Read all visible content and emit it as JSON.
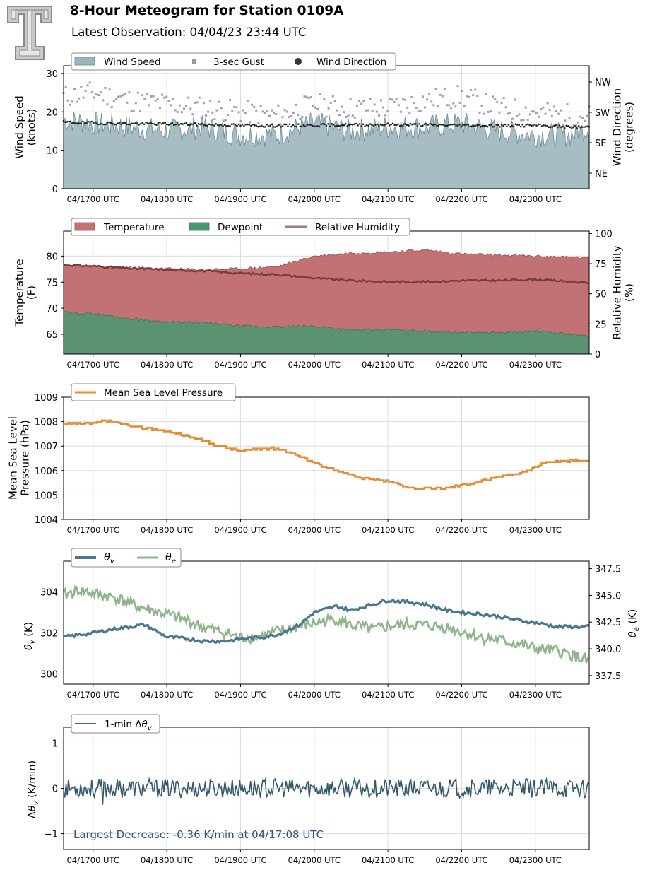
{
  "header": {
    "title": "8-Hour Meteogram for Station 0109A",
    "subtitle": "Latest Observation: 04/04/23 23:44 UTC"
  },
  "colors": {
    "wind_speed": "#9db6bd",
    "gust": "#9a93ad",
    "wind_direction": "#222222",
    "temperature": "#c27274",
    "dewpoint": "#4c9670",
    "relative_humidity": "#7a3a3d",
    "pressure": "#e58b33",
    "theta_v": "#4a7690",
    "theta_e": "#8fb58c",
    "delta_theta_v": "#35596c",
    "annotation": "#2f5570"
  },
  "chart_data": [
    {
      "id": "wind",
      "type": "area",
      "ylabel": "Wind Speed\n(knots)",
      "y2label": "Wind Direction\n(degrees)",
      "ylim": [
        0,
        32
      ],
      "yticks": [
        0,
        10,
        20,
        30
      ],
      "y2ticks": [
        "NE",
        "SE",
        "SW",
        "NW"
      ],
      "xticks": [
        "04/1700 UTC",
        "04/1800 UTC",
        "04/1900 UTC",
        "04/2000 UTC",
        "04/2100 UTC",
        "04/2200 UTC",
        "04/2300 UTC"
      ],
      "legend": [
        "Wind Speed",
        "3-sec Gust",
        "Wind Direction"
      ],
      "grid": true,
      "series": [
        {
          "name": "Wind Speed",
          "x": [
            16.6,
            17.0,
            17.5,
            18.0,
            18.5,
            19.0,
            19.5,
            20.0,
            20.5,
            21.0,
            21.5,
            22.0,
            22.5,
            23.0,
            23.5,
            23.73
          ],
          "values": [
            18,
            17,
            16,
            15,
            16,
            14,
            14,
            17,
            15,
            16,
            16,
            17,
            15,
            14,
            14,
            16
          ]
        },
        {
          "name": "3-sec Gust",
          "x": [
            16.6,
            17.0,
            17.5,
            18.0,
            18.5,
            19.0,
            19.5,
            20.0,
            20.5,
            21.0,
            21.5,
            22.0,
            22.5,
            23.0,
            23.5,
            23.73
          ],
          "values": [
            24,
            25,
            23,
            22,
            21,
            20,
            19,
            22,
            21,
            21,
            23,
            24,
            21,
            20,
            19,
            19
          ]
        },
        {
          "name": "Wind Direction",
          "x": [
            16.6,
            17.0,
            17.5,
            18.0,
            18.5,
            19.0,
            19.5,
            20.0,
            20.5,
            21.0,
            21.5,
            22.0,
            22.5,
            23.0,
            23.5,
            23.73
          ],
          "values": [
            17.3,
            17.1,
            16.9,
            16.9,
            16.7,
            16.5,
            16.4,
            16.5,
            16.6,
            16.7,
            16.6,
            16.5,
            16.4,
            16.5,
            16.0,
            16.1
          ]
        }
      ]
    },
    {
      "id": "temperature",
      "type": "area",
      "ylabel": "Temperature\n(F)",
      "y2label": "Relative Humidity\n(%)",
      "ylim": [
        61.2,
        84.8
      ],
      "yticks": [
        65,
        70,
        75,
        80
      ],
      "y2lim": [
        0,
        102
      ],
      "y2ticks": [
        0,
        25,
        50,
        75,
        100
      ],
      "xticks": [
        "04/1700 UTC",
        "04/1800 UTC",
        "04/1900 UTC",
        "04/2000 UTC",
        "04/2100 UTC",
        "04/2200 UTC",
        "04/2300 UTC"
      ],
      "legend": [
        "Temperature",
        "Dewpoint",
        "Relative Humidity"
      ],
      "grid": true,
      "series": [
        {
          "name": "Temperature",
          "x": [
            16.6,
            17.0,
            17.5,
            18.0,
            18.5,
            19.0,
            19.5,
            20.0,
            20.5,
            21.0,
            21.5,
            22.0,
            22.5,
            23.0,
            23.5,
            23.73
          ],
          "values": [
            78.2,
            78.0,
            77.8,
            77.6,
            77.4,
            77.6,
            78.0,
            80.0,
            80.6,
            80.8,
            81.2,
            80.4,
            80.2,
            80.0,
            79.8,
            79.6
          ]
        },
        {
          "name": "Dewpoint",
          "x": [
            16.6,
            17.0,
            17.5,
            18.0,
            18.5,
            19.0,
            19.5,
            20.0,
            20.5,
            21.0,
            21.5,
            22.0,
            22.5,
            23.0,
            23.5,
            23.73
          ],
          "values": [
            69.2,
            69.0,
            68.0,
            67.4,
            67.2,
            66.6,
            66.4,
            66.6,
            65.8,
            65.9,
            65.6,
            65.4,
            65.3,
            65.6,
            65.0,
            64.6
          ]
        },
        {
          "name": "Relative Humidity",
          "x": [
            16.6,
            17.0,
            17.5,
            18.0,
            18.5,
            19.0,
            19.5,
            20.0,
            20.5,
            21.0,
            21.5,
            22.0,
            22.5,
            23.0,
            23.5,
            23.73
          ],
          "values": [
            74,
            73,
            71,
            70,
            69,
            67,
            66,
            63,
            61,
            60,
            60,
            61,
            61,
            62,
            60,
            59
          ]
        }
      ]
    },
    {
      "id": "pressure",
      "type": "line",
      "ylabel": "Mean Sea Level\nPressure (hPa)",
      "ylim": [
        1004,
        1009
      ],
      "yticks": [
        1004,
        1005,
        1006,
        1007,
        1008,
        1009
      ],
      "xticks": [
        "04/1700 UTC",
        "04/1800 UTC",
        "04/1900 UTC",
        "04/2000 UTC",
        "04/2100 UTC",
        "04/2200 UTC",
        "04/2300 UTC"
      ],
      "legend": [
        "Mean Sea Level Pressure"
      ],
      "grid": true,
      "series": [
        {
          "name": "Mean Sea Level Pressure",
          "x": [
            16.6,
            16.9,
            17.1,
            17.3,
            17.5,
            17.8,
            18.0,
            18.3,
            18.5,
            18.7,
            19.0,
            19.3,
            19.5,
            19.8,
            20.0,
            20.3,
            20.6,
            20.9,
            21.1,
            21.3,
            21.6,
            21.8,
            22.0,
            22.3,
            22.6,
            22.9,
            23.1,
            23.3,
            23.5,
            23.73
          ],
          "values": [
            1007.9,
            1007.9,
            1008.0,
            1008.0,
            1007.8,
            1007.7,
            1007.6,
            1007.4,
            1007.2,
            1007.0,
            1006.8,
            1006.9,
            1006.9,
            1006.6,
            1006.3,
            1006.0,
            1005.7,
            1005.6,
            1005.5,
            1005.3,
            1005.25,
            1005.3,
            1005.4,
            1005.6,
            1005.8,
            1006.0,
            1006.3,
            1006.4,
            1006.4,
            1006.4
          ]
        }
      ]
    },
    {
      "id": "theta",
      "type": "line",
      "ylabel": "θv (K)",
      "y2label": "θe (K)",
      "ylim": [
        299.5,
        305.5
      ],
      "yticks": [
        300,
        302,
        304
      ],
      "y2lim": [
        336.7,
        348.2
      ],
      "y2ticks": [
        337.5,
        340.0,
        342.5,
        345.0,
        347.5
      ],
      "xticks": [
        "04/1700 UTC",
        "04/1800 UTC",
        "04/1900 UTC",
        "04/2000 UTC",
        "04/2100 UTC",
        "04/2200 UTC",
        "04/2300 UTC"
      ],
      "legend": [
        "θv",
        "θe"
      ],
      "grid": true,
      "series": [
        {
          "name": "θv",
          "x": [
            16.6,
            16.8,
            17.0,
            17.3,
            17.5,
            17.7,
            18.0,
            18.3,
            18.5,
            18.8,
            19.0,
            19.3,
            19.5,
            19.8,
            20.0,
            20.3,
            20.5,
            20.8,
            21.0,
            21.3,
            21.5,
            21.8,
            22.0,
            22.3,
            22.5,
            22.8,
            23.0,
            23.3,
            23.5,
            23.73
          ],
          "values": [
            301.8,
            301.9,
            302.0,
            302.2,
            302.3,
            302.4,
            301.8,
            301.7,
            301.6,
            301.6,
            301.7,
            301.8,
            301.9,
            302.4,
            303.0,
            303.3,
            303.1,
            303.4,
            303.6,
            303.5,
            303.4,
            303.1,
            303.0,
            302.9,
            302.8,
            302.6,
            302.5,
            302.3,
            302.3,
            302.3
          ]
        },
        {
          "name": "θe",
          "x": [
            16.6,
            16.8,
            17.0,
            17.3,
            17.5,
            17.7,
            18.0,
            18.3,
            18.5,
            18.8,
            19.0,
            19.3,
            19.5,
            19.8,
            20.0,
            20.3,
            20.5,
            20.8,
            21.0,
            21.3,
            21.5,
            21.8,
            22.0,
            22.3,
            22.5,
            22.8,
            23.0,
            23.3,
            23.5,
            23.73
          ],
          "values": [
            345.0,
            345.5,
            345.2,
            344.8,
            344.2,
            343.8,
            343.2,
            342.6,
            342.0,
            341.5,
            341.0,
            341.2,
            341.6,
            342.1,
            342.4,
            342.8,
            342.2,
            341.8,
            342.1,
            342.3,
            342.2,
            342.0,
            341.6,
            341.0,
            340.8,
            340.4,
            340.0,
            339.8,
            339.4,
            338.8
          ]
        }
      ]
    },
    {
      "id": "dtheta",
      "type": "line",
      "ylabel": "Δθv (K/min)",
      "ylim": [
        -1.35,
        1.35
      ],
      "yticks": [
        -1,
        0,
        1
      ],
      "xticks": [
        "04/1700 UTC",
        "04/1800 UTC",
        "04/1900 UTC",
        "04/2000 UTC",
        "04/2100 UTC",
        "04/2200 UTC",
        "04/2300 UTC"
      ],
      "legend": [
        "1-min Δθv"
      ],
      "grid": true,
      "annotation": "Largest Decrease: -0.36 K/min at 04/17:08 UTC",
      "series": [
        {
          "name": "1-min Δθv",
          "x": [
            16.6,
            17.13,
            18.0,
            19.0,
            20.0,
            21.0,
            22.0,
            23.0,
            23.73
          ],
          "values": [
            0.0,
            -0.36,
            0.0,
            0.0,
            0.0,
            0.0,
            0.0,
            0.0,
            0.0
          ]
        }
      ]
    }
  ]
}
